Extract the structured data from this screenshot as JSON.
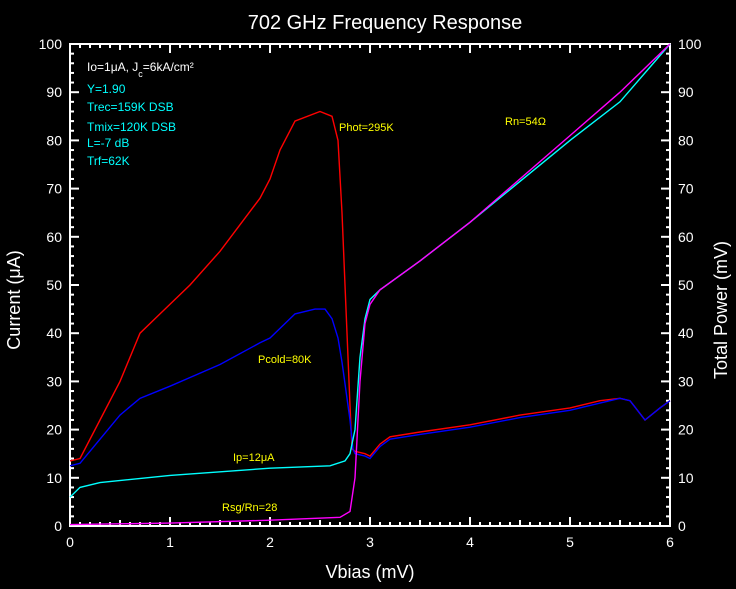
{
  "chart_data": {
    "type": "line",
    "title": "702 GHz Frequency Response",
    "xlabel": "Vbias (mV)",
    "ylabel": "Current (μA)",
    "y2label": "Total Power (mV)",
    "xlim": [
      0,
      6
    ],
    "ylim": [
      0,
      100
    ],
    "y2lim": [
      0,
      100
    ],
    "xticks": [
      "0",
      "1",
      "2",
      "3",
      "4",
      "5",
      "6"
    ],
    "yticks": [
      "0",
      "10",
      "20",
      "30",
      "40",
      "50",
      "60",
      "70",
      "80",
      "90",
      "100"
    ],
    "grid": false,
    "annotations": {
      "header": "Io=1μA, J",
      "header_sub": "c",
      "header_tail": "=6kA/cm²",
      "y_factor": "Y=1.90",
      "trec": "Trec=159K DSB",
      "tmix": "Tmix=120K DSB",
      "loss": "L=-7 dB",
      "trf": "Trf=62K"
    },
    "series": [
      {
        "name": "Phot=295K",
        "color": "#ff0000",
        "x": [
          0,
          0.1,
          0.3,
          0.5,
          0.7,
          0.9,
          1.2,
          1.5,
          1.9,
          2.0,
          2.1,
          2.25,
          2.5,
          2.62,
          2.68,
          2.72,
          2.75,
          2.78,
          2.8,
          2.82,
          2.85,
          2.95,
          3.0,
          3.1,
          3.2,
          3.5,
          4.0,
          4.5,
          5.0,
          5.3,
          5.5,
          5.6,
          5.75,
          5.9,
          6.0
        ],
        "y": [
          13.5,
          14,
          22,
          30,
          40,
          44,
          50,
          57,
          68,
          72,
          78,
          84,
          86,
          85,
          80,
          65,
          50,
          35,
          25,
          16,
          15.5,
          15,
          14.5,
          17,
          18.5,
          19.5,
          21,
          23,
          24.5,
          26,
          26.5,
          26,
          22,
          24.5,
          26
        ]
      },
      {
        "name": "Pcold=80K",
        "color": "#0000ff",
        "x": [
          0,
          0.1,
          0.3,
          0.5,
          0.7,
          1.0,
          1.5,
          1.9,
          2.0,
          2.1,
          2.25,
          2.45,
          2.55,
          2.62,
          2.68,
          2.72,
          2.76,
          2.8,
          2.83,
          2.85,
          2.95,
          3.0,
          3.1,
          3.2,
          3.5,
          4.0,
          4.5,
          5.0,
          5.3,
          5.5,
          5.6,
          5.75,
          5.9,
          6.0
        ],
        "y": [
          12.5,
          13,
          18,
          23,
          26.5,
          29,
          33.5,
          38,
          39,
          41,
          44,
          45,
          45,
          43,
          39,
          34,
          28,
          22,
          16,
          15,
          14.5,
          14,
          16.5,
          18,
          19,
          20.5,
          22.5,
          24,
          25.5,
          26.5,
          26,
          22,
          24.5,
          26
        ]
      },
      {
        "name": "Ip=12μA",
        "color": "#00ffff",
        "x": [
          0,
          0.1,
          0.3,
          1.0,
          2.0,
          2.6,
          2.75,
          2.8,
          2.85,
          2.9,
          2.95,
          3.0,
          3.1,
          3.5,
          4.0,
          5.0,
          5.5,
          6.0
        ],
        "y": [
          6,
          8,
          9,
          10.5,
          12,
          12.5,
          13.5,
          15,
          20,
          35,
          43,
          47,
          49,
          55,
          63,
          80,
          88,
          100
        ]
      },
      {
        "name": "Rsg/Rn=28",
        "color": "#ff00ff",
        "x": [
          0,
          1.0,
          2.0,
          2.7,
          2.8,
          2.85,
          2.9,
          2.95,
          3.0,
          3.1,
          3.5,
          4.0,
          5.0,
          5.5,
          6.0
        ],
        "y": [
          0.3,
          0.6,
          1.2,
          1.8,
          3,
          10,
          30,
          42,
          46,
          49,
          55,
          63,
          81,
          90,
          100
        ]
      }
    ],
    "labels": {
      "phot": "Phot=295K",
      "pcold": "Pcold=80K",
      "ip": "Ip=12μA",
      "rsg": "Rsg/Rn=28",
      "rn": "Rn=54Ω"
    },
    "colors": {
      "axis": "#ffffff",
      "label": "#ffff00",
      "info": "#00ffff"
    }
  }
}
